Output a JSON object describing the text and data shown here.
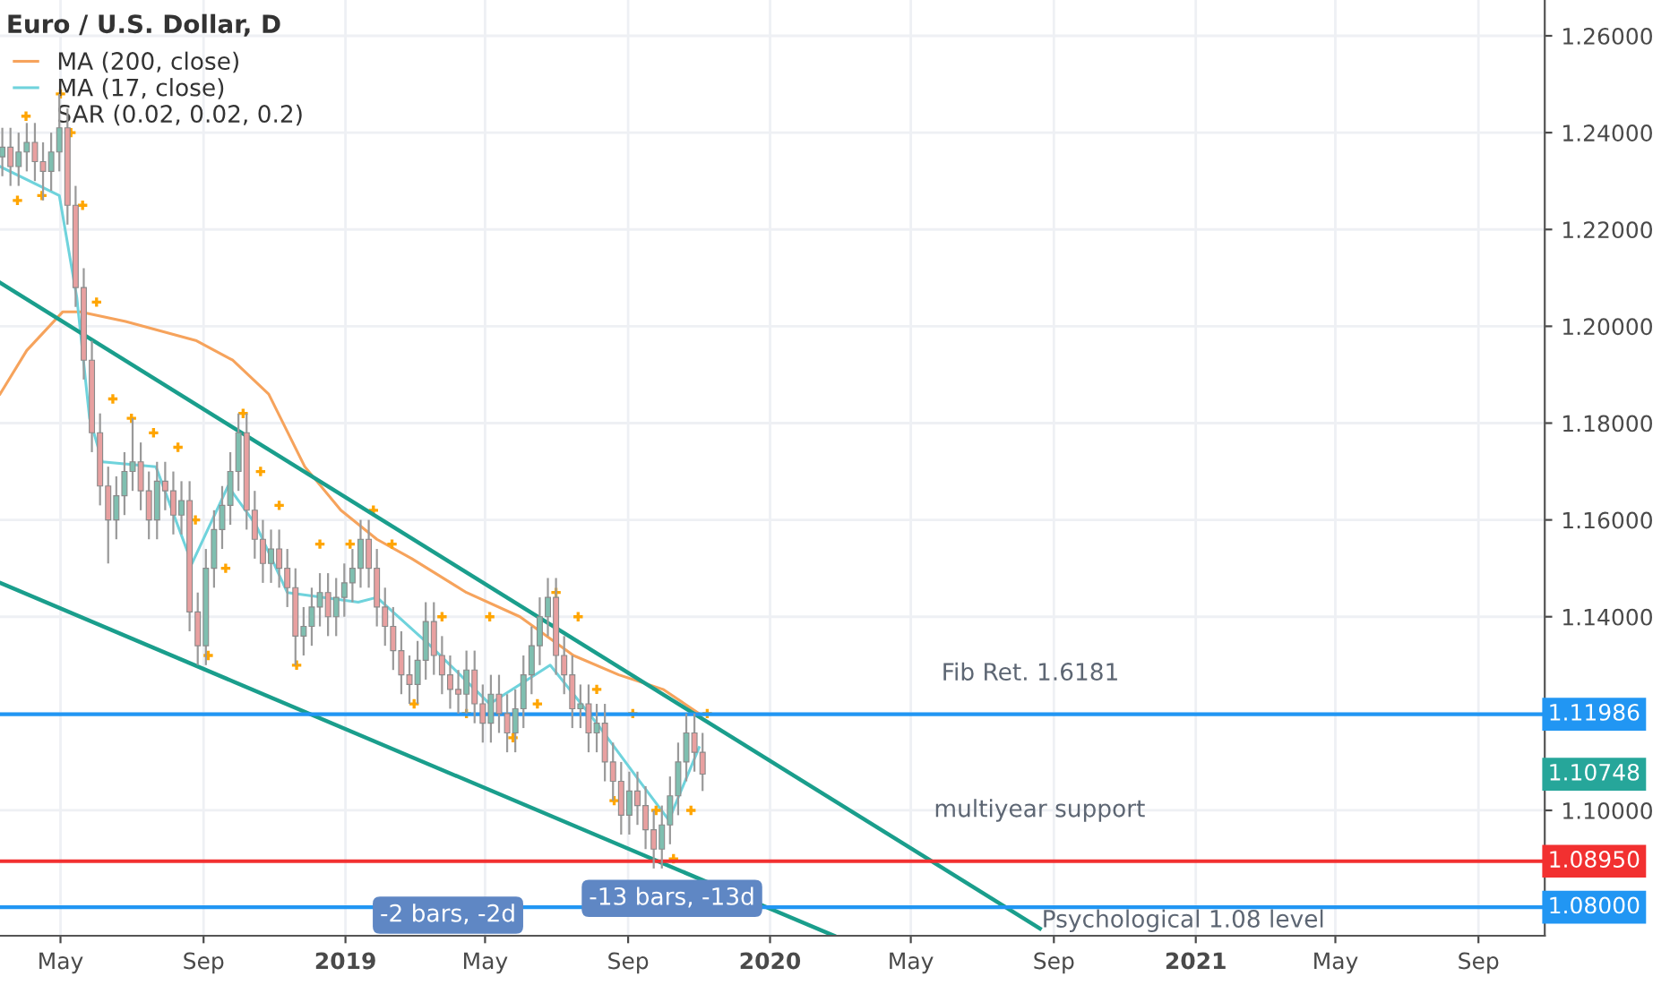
{
  "chart_data": {
    "type": "candlestick",
    "title": "Euro / U.S. Dollar, D",
    "x": [
      "2018-03-12",
      "2018-03-19",
      "2018-03-26",
      "2018-04-02",
      "2018-04-09",
      "2018-04-16",
      "2018-04-23",
      "2018-04-30",
      "2018-05-07",
      "2018-05-14",
      "2018-05-21",
      "2018-05-28",
      "2018-06-04",
      "2018-06-11",
      "2018-06-18",
      "2018-06-25",
      "2018-07-02",
      "2018-07-09",
      "2018-07-16",
      "2018-07-23",
      "2018-07-30",
      "2018-08-06",
      "2018-08-13",
      "2018-08-20",
      "2018-08-27",
      "2018-09-03",
      "2018-09-10",
      "2018-09-17",
      "2018-09-24",
      "2018-10-01",
      "2018-10-08",
      "2018-10-15",
      "2018-10-22",
      "2018-10-29",
      "2018-11-05",
      "2018-11-12",
      "2018-11-19",
      "2018-11-26",
      "2018-12-03",
      "2018-12-10",
      "2018-12-17",
      "2018-12-24",
      "2018-12-31",
      "2019-01-07",
      "2019-01-14",
      "2019-01-21",
      "2019-01-28",
      "2019-02-04",
      "2019-02-11",
      "2019-02-18",
      "2019-02-25",
      "2019-03-04",
      "2019-03-11",
      "2019-03-18",
      "2019-03-25",
      "2019-04-01",
      "2019-04-08",
      "2019-04-15",
      "2019-04-22",
      "2019-04-29",
      "2019-05-06",
      "2019-05-13",
      "2019-05-20",
      "2019-05-27",
      "2019-06-03",
      "2019-06-10",
      "2019-06-17",
      "2019-06-24",
      "2019-07-01",
      "2019-07-08",
      "2019-07-15",
      "2019-07-22",
      "2019-07-29",
      "2019-08-05",
      "2019-08-12",
      "2019-08-19",
      "2019-08-26",
      "2019-09-02",
      "2019-09-09",
      "2019-09-16",
      "2019-09-23",
      "2019-09-30",
      "2019-10-07",
      "2019-10-14",
      "2019-10-21",
      "2019-10-28",
      "2019-11-04"
    ],
    "ohlc": [
      [
        1.235,
        1.241,
        1.231,
        1.237
      ],
      [
        1.237,
        1.241,
        1.229,
        1.233
      ],
      [
        1.233,
        1.24,
        1.229,
        1.236
      ],
      [
        1.236,
        1.242,
        1.232,
        1.238
      ],
      [
        1.238,
        1.242,
        1.23,
        1.234
      ],
      [
        1.234,
        1.238,
        1.226,
        1.232
      ],
      [
        1.232,
        1.24,
        1.228,
        1.236
      ],
      [
        1.236,
        1.248,
        1.232,
        1.241
      ],
      [
        1.241,
        1.245,
        1.221,
        1.225
      ],
      [
        1.225,
        1.229,
        1.204,
        1.208
      ],
      [
        1.208,
        1.212,
        1.189,
        1.193
      ],
      [
        1.193,
        1.197,
        1.174,
        1.178
      ],
      [
        1.178,
        1.182,
        1.163,
        1.167
      ],
      [
        1.167,
        1.171,
        1.151,
        1.16
      ],
      [
        1.16,
        1.169,
        1.156,
        1.165
      ],
      [
        1.165,
        1.174,
        1.161,
        1.17
      ],
      [
        1.17,
        1.181,
        1.166,
        1.172
      ],
      [
        1.172,
        1.176,
        1.162,
        1.166
      ],
      [
        1.166,
        1.17,
        1.156,
        1.16
      ],
      [
        1.16,
        1.172,
        1.156,
        1.168
      ],
      [
        1.168,
        1.172,
        1.162,
        1.166
      ],
      [
        1.166,
        1.17,
        1.157,
        1.161
      ],
      [
        1.161,
        1.168,
        1.157,
        1.164
      ],
      [
        1.164,
        1.168,
        1.137,
        1.141
      ],
      [
        1.141,
        1.145,
        1.13,
        1.134
      ],
      [
        1.134,
        1.154,
        1.13,
        1.15
      ],
      [
        1.15,
        1.162,
        1.146,
        1.158
      ],
      [
        1.158,
        1.167,
        1.154,
        1.163
      ],
      [
        1.163,
        1.174,
        1.159,
        1.17
      ],
      [
        1.17,
        1.182,
        1.166,
        1.178
      ],
      [
        1.178,
        1.182,
        1.158,
        1.162
      ],
      [
        1.162,
        1.166,
        1.152,
        1.156
      ],
      [
        1.156,
        1.16,
        1.147,
        1.151
      ],
      [
        1.151,
        1.158,
        1.147,
        1.154
      ],
      [
        1.154,
        1.158,
        1.146,
        1.15
      ],
      [
        1.15,
        1.154,
        1.142,
        1.146
      ],
      [
        1.146,
        1.15,
        1.13,
        1.136
      ],
      [
        1.136,
        1.142,
        1.132,
        1.138
      ],
      [
        1.138,
        1.146,
        1.134,
        1.142
      ],
      [
        1.142,
        1.149,
        1.138,
        1.145
      ],
      [
        1.145,
        1.149,
        1.136,
        1.14
      ],
      [
        1.14,
        1.148,
        1.136,
        1.144
      ],
      [
        1.144,
        1.151,
        1.14,
        1.147
      ],
      [
        1.147,
        1.154,
        1.143,
        1.15
      ],
      [
        1.15,
        1.16,
        1.146,
        1.156
      ],
      [
        1.156,
        1.16,
        1.146,
        1.15
      ],
      [
        1.15,
        1.154,
        1.138,
        1.142
      ],
      [
        1.142,
        1.146,
        1.134,
        1.138
      ],
      [
        1.138,
        1.142,
        1.129,
        1.133
      ],
      [
        1.133,
        1.137,
        1.124,
        1.128
      ],
      [
        1.128,
        1.132,
        1.122,
        1.126
      ],
      [
        1.126,
        1.135,
        1.122,
        1.131
      ],
      [
        1.131,
        1.143,
        1.127,
        1.139
      ],
      [
        1.139,
        1.143,
        1.128,
        1.132
      ],
      [
        1.132,
        1.136,
        1.124,
        1.128
      ],
      [
        1.128,
        1.132,
        1.121,
        1.125
      ],
      [
        1.125,
        1.129,
        1.12,
        1.124
      ],
      [
        1.124,
        1.133,
        1.12,
        1.129
      ],
      [
        1.129,
        1.133,
        1.118,
        1.122
      ],
      [
        1.122,
        1.126,
        1.114,
        1.118
      ],
      [
        1.118,
        1.128,
        1.114,
        1.124
      ],
      [
        1.124,
        1.128,
        1.116,
        1.12
      ],
      [
        1.12,
        1.124,
        1.112,
        1.116
      ],
      [
        1.116,
        1.125,
        1.112,
        1.121
      ],
      [
        1.121,
        1.132,
        1.117,
        1.128
      ],
      [
        1.128,
        1.138,
        1.124,
        1.134
      ],
      [
        1.134,
        1.144,
        1.13,
        1.14
      ],
      [
        1.14,
        1.148,
        1.136,
        1.144
      ],
      [
        1.144,
        1.148,
        1.128,
        1.132
      ],
      [
        1.132,
        1.136,
        1.124,
        1.128
      ],
      [
        1.128,
        1.132,
        1.117,
        1.121
      ],
      [
        1.121,
        1.126,
        1.117,
        1.122
      ],
      [
        1.122,
        1.126,
        1.112,
        1.116
      ],
      [
        1.116,
        1.122,
        1.112,
        1.118
      ],
      [
        1.118,
        1.122,
        1.106,
        1.11
      ],
      [
        1.11,
        1.114,
        1.102,
        1.106
      ],
      [
        1.106,
        1.11,
        1.095,
        1.099
      ],
      [
        1.099,
        1.108,
        1.095,
        1.104
      ],
      [
        1.104,
        1.108,
        1.097,
        1.101
      ],
      [
        1.101,
        1.105,
        1.092,
        1.096
      ],
      [
        1.096,
        1.1,
        1.088,
        1.092
      ],
      [
        1.092,
        1.101,
        1.088,
        1.097
      ],
      [
        1.097,
        1.107,
        1.093,
        1.103
      ],
      [
        1.103,
        1.114,
        1.099,
        1.11
      ],
      [
        1.11,
        1.12,
        1.106,
        1.116
      ],
      [
        1.116,
        1.12,
        1.108,
        1.112
      ],
      [
        1.112,
        1.116,
        1.104,
        1.10748
      ]
    ],
    "series": [
      {
        "type": "line",
        "name": "MA (200, close)",
        "color": "#f6a35c",
        "x": [
          "2018-03-10",
          "2018-04-02",
          "2018-05-03",
          "2018-05-18",
          "2018-06-26",
          "2018-08-26",
          "2018-09-26",
          "2018-10-27",
          "2018-11-27",
          "2018-12-28",
          "2019-01-28",
          "2019-02-27",
          "2019-04-15",
          "2019-05-31",
          "2019-07-16",
          "2019-08-24",
          "2019-10-01",
          "2019-11-01"
        ],
        "values": [
          1.186,
          1.195,
          1.203,
          1.203,
          1.201,
          1.197,
          1.193,
          1.186,
          1.171,
          1.162,
          1.156,
          1.152,
          1.145,
          1.14,
          1.132,
          1.128,
          1.125,
          1.12
        ]
      },
      {
        "type": "line",
        "name": "MA (17, close)",
        "color": "#6fd3dc",
        "x": [
          "2018-03-10",
          "2018-04-30",
          "2018-05-15",
          "2018-05-26",
          "2018-06-06",
          "2018-07-22",
          "2018-08-22",
          "2018-09-22",
          "2018-10-16",
          "2018-11-12",
          "2019-01-12",
          "2019-01-28",
          "2019-03-15",
          "2019-05-05",
          "2019-06-26",
          "2019-08-05",
          "2019-09-11",
          "2019-10-06",
          "2019-11-01"
        ],
        "values": [
          1.233,
          1.227,
          1.206,
          1.181,
          1.172,
          1.171,
          1.151,
          1.167,
          1.159,
          1.145,
          1.143,
          1.144,
          1.134,
          1.122,
          1.13,
          1.118,
          1.106,
          1.098,
          1.113
        ]
      },
      {
        "type": "scatter",
        "name": "SAR (0.02, 0.02, 0.2)",
        "color": "#ffa500",
        "marker": "cross",
        "x": [
          "2018-03-25",
          "2018-04-15",
          "2018-05-01",
          "2018-05-10",
          "2018-05-20",
          "2018-06-01",
          "2018-06-15",
          "2018-07-01",
          "2018-07-20",
          "2018-08-10",
          "2018-08-25",
          "2018-09-05",
          "2018-09-20",
          "2018-10-05",
          "2018-10-20",
          "2018-11-05",
          "2018-11-20",
          "2018-12-10",
          "2019-01-05",
          "2019-01-25",
          "2019-02-10",
          "2019-03-01",
          "2019-03-25",
          "2019-04-15",
          "2019-05-05",
          "2019-05-25",
          "2019-06-15",
          "2019-07-01",
          "2019-07-20",
          "2019-08-05",
          "2019-08-20",
          "2019-09-05",
          "2019-09-25",
          "2019-10-10",
          "2019-10-25",
          "2019-11-08"
        ],
        "values": [
          1.226,
          1.227,
          1.248,
          1.24,
          1.225,
          1.205,
          1.185,
          1.181,
          1.178,
          1.175,
          1.16,
          1.132,
          1.15,
          1.182,
          1.17,
          1.163,
          1.13,
          1.155,
          1.155,
          1.162,
          1.155,
          1.122,
          1.14,
          1.12,
          1.14,
          1.115,
          1.122,
          1.145,
          1.14,
          1.125,
          1.102,
          1.12,
          1.1,
          1.09,
          1.1,
          1.12
        ]
      },
      {
        "type": "line",
        "color": "#1a9e8c",
        "x": [
          "2018-03-10",
          "2020-08-20"
        ],
        "values": [
          1.209,
          1.0756
        ]
      },
      {
        "type": "line",
        "color": "#1a9e8c",
        "x": [
          "2018-03-10",
          "2020-02-25"
        ],
        "values": [
          1.147,
          1.0741
        ]
      }
    ],
    "ref_lines": [
      {
        "axis": "y",
        "value": 1.11986,
        "color": "#2196f3",
        "label": "1.11986"
      },
      {
        "axis": "y",
        "value": 1.0895,
        "color": "#f23030",
        "label": "1.08950"
      },
      {
        "axis": "y",
        "value": 1.08,
        "color": "#2196f3",
        "label": "1.08000"
      }
    ],
    "annotations": [
      "Fib Ret. 1.6181",
      "multiyear support",
      "Psychological 1.08 level",
      "-2 bars, -2d",
      "-13 bars, -13d",
      "1.10748"
    ],
    "xlim": [
      "2018-03-10",
      "2021-10-28"
    ],
    "xticks": [
      {
        "value": "2018-05-01",
        "label": "May"
      },
      {
        "value": "2018-09-01",
        "label": "Sep"
      },
      {
        "value": "2019-01-01",
        "label": "2019"
      },
      {
        "value": "2019-05-01",
        "label": "May"
      },
      {
        "value": "2019-09-01",
        "label": "Sep"
      },
      {
        "value": "2020-01-01",
        "label": "2020"
      },
      {
        "value": "2020-05-01",
        "label": "May"
      },
      {
        "value": "2020-09-01",
        "label": "Sep"
      },
      {
        "value": "2021-01-01",
        "label": "2021"
      },
      {
        "value": "2021-05-01",
        "label": "May"
      },
      {
        "value": "2021-09-01",
        "label": "Sep"
      }
    ],
    "ylim": [
      1.0741,
      1.2674
    ],
    "yticks": [
      {
        "value": 1.1,
        "label": "1.10000"
      },
      {
        "value": 1.12,
        "label": null
      },
      {
        "value": 1.14,
        "label": "1.14000"
      },
      {
        "value": 1.16,
        "label": "1.16000"
      },
      {
        "value": 1.18,
        "label": "1.18000"
      },
      {
        "value": 1.2,
        "label": "1.20000"
      },
      {
        "value": 1.22,
        "label": "1.22000"
      },
      {
        "value": 1.24,
        "label": "1.24000"
      },
      {
        "value": 1.26,
        "label": "1.26000"
      }
    ],
    "grid": true,
    "legend": "top left"
  }
}
